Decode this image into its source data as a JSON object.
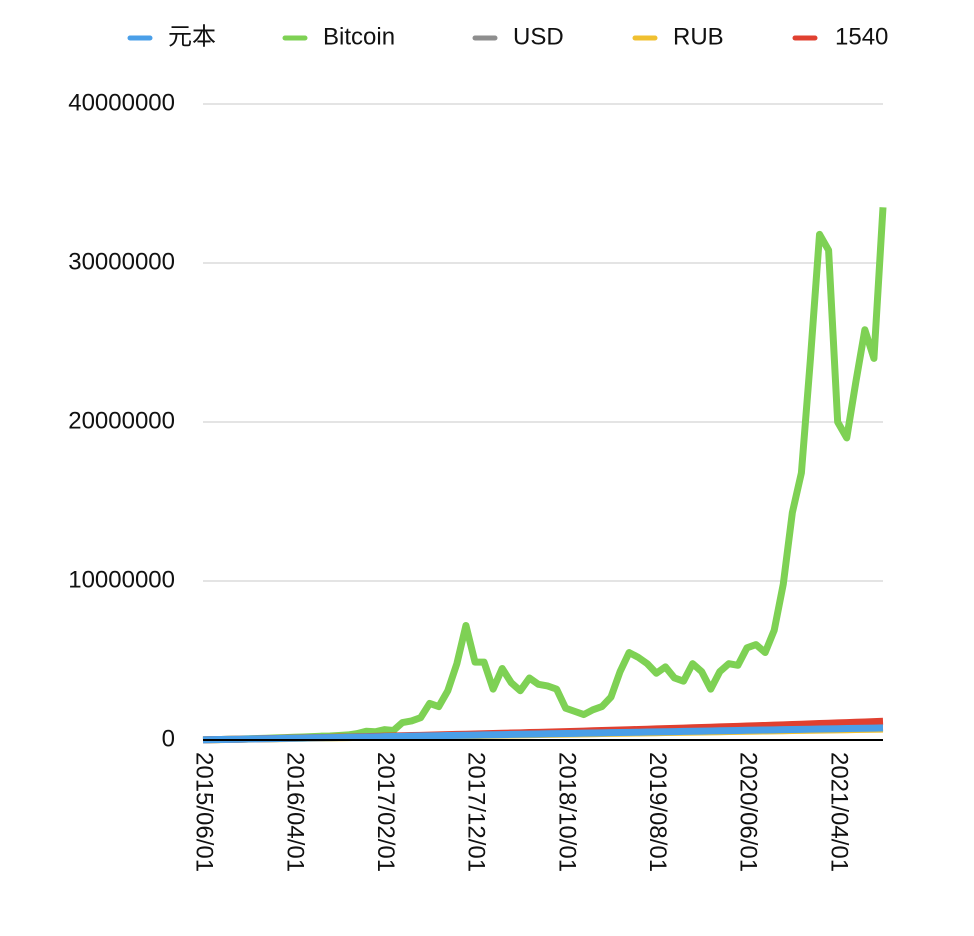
{
  "chart_data": {
    "type": "line",
    "categories": [
      "2015/06/01",
      null,
      null,
      null,
      null,
      null,
      null,
      null,
      null,
      null,
      "2016/04/01",
      null,
      null,
      null,
      null,
      null,
      null,
      null,
      null,
      null,
      "2017/02/01",
      null,
      null,
      null,
      null,
      null,
      null,
      null,
      null,
      null,
      "2017/12/01",
      null,
      null,
      null,
      null,
      null,
      null,
      null,
      null,
      null,
      "2018/10/01",
      null,
      null,
      null,
      null,
      null,
      null,
      null,
      null,
      null,
      "2019/08/01",
      null,
      null,
      null,
      null,
      null,
      null,
      null,
      null,
      null,
      "2020/06/01",
      null,
      null,
      null,
      null,
      null,
      null,
      null,
      null,
      null,
      "2021/04/01",
      null,
      null,
      null,
      null,
      null
    ],
    "series": [
      {
        "name": "元本",
        "color": "#4a9fe8",
        "values": [
          10000,
          20000,
          30000,
          40000,
          50000,
          60000,
          70000,
          80000,
          90000,
          100000,
          110000,
          120000,
          130000,
          140000,
          150000,
          160000,
          170000,
          180000,
          190000,
          200000,
          210000,
          220000,
          230000,
          240000,
          250000,
          260000,
          270000,
          280000,
          290000,
          300000,
          310000,
          320000,
          330000,
          340000,
          350000,
          360000,
          370000,
          380000,
          390000,
          400000,
          410000,
          420000,
          430000,
          440000,
          450000,
          460000,
          470000,
          480000,
          490000,
          500000,
          510000,
          520000,
          530000,
          540000,
          550000,
          560000,
          570000,
          580000,
          590000,
          600000,
          610000,
          620000,
          630000,
          640000,
          650000,
          660000,
          670000,
          680000,
          690000,
          700000,
          710000,
          720000,
          730000,
          740000,
          750000,
          760000
        ]
      },
      {
        "name": "Bitcoin",
        "color": "#7ed154",
        "values": [
          10000,
          20000,
          30000,
          45000,
          60000,
          75000,
          95000,
          110000,
          130000,
          150000,
          170000,
          190000,
          210000,
          240000,
          250000,
          280000,
          320000,
          400000,
          550000,
          520000,
          650000,
          600000,
          1100000,
          1200000,
          1400000,
          2300000,
          2100000,
          3100000,
          4800000,
          7200000,
          4900000,
          4900000,
          3200000,
          4500000,
          3600000,
          3100000,
          3900000,
          3500000,
          3400000,
          3200000,
          2000000,
          1800000,
          1600000,
          1900000,
          2100000,
          2700000,
          4300000,
          5500000,
          5200000,
          4800000,
          4200000,
          4600000,
          3900000,
          3700000,
          4800000,
          4300000,
          3200000,
          4300000,
          4800000,
          4700000,
          5800000,
          6000000,
          5500000,
          6900000,
          9800000,
          14300000,
          16800000,
          24000000,
          31800000,
          30800000,
          20000000,
          19000000,
          22500000,
          25800000,
          24000000,
          33500000
        ]
      },
      {
        "name": "USD",
        "color": "#8e8e8e",
        "values": [
          9800,
          19800,
          29800,
          39800,
          49800,
          59800,
          69800,
          79800,
          89800,
          99800,
          109800,
          119800,
          129800,
          139800,
          149800,
          159800,
          169800,
          179800,
          189800,
          199800,
          209800,
          219800,
          229800,
          239800,
          249800,
          259800,
          269800,
          279800,
          289800,
          299800,
          309800,
          319800,
          329800,
          339800,
          349800,
          359800,
          369800,
          379800,
          389800,
          399800,
          409800,
          419800,
          429800,
          439800,
          449800,
          459800,
          469800,
          479800,
          489800,
          499800,
          509800,
          519800,
          529800,
          539800,
          549800,
          559800,
          569800,
          579800,
          589800,
          599800,
          609800,
          619800,
          629800,
          639800,
          649800,
          659800,
          669800,
          679800,
          689800,
          699800,
          709800,
          719800,
          729800,
          739800,
          749800,
          759800
        ]
      },
      {
        "name": "RUB",
        "color": "#f0c030",
        "values": [
          9000,
          18000,
          27000,
          36000,
          45000,
          54000,
          63000,
          72000,
          81000,
          90000,
          99000,
          108000,
          117000,
          126000,
          135000,
          144000,
          153000,
          162000,
          171000,
          180000,
          189000,
          198000,
          207000,
          216000,
          225000,
          234000,
          243000,
          252000,
          261000,
          270000,
          279000,
          288000,
          297000,
          306000,
          315000,
          324000,
          333000,
          342000,
          351000,
          360000,
          369000,
          378000,
          387000,
          396000,
          405000,
          414000,
          423000,
          432000,
          441000,
          450000,
          459000,
          468000,
          477000,
          486000,
          495000,
          504000,
          513000,
          522000,
          531000,
          540000,
          549000,
          558000,
          567000,
          576000,
          585000,
          594000,
          603000,
          612000,
          621000,
          630000,
          639000,
          648000,
          657000,
          666000,
          675000,
          684000
        ]
      },
      {
        "name": "1540",
        "color": "#e04030",
        "values": [
          10000,
          20000,
          30000,
          41000,
          51000,
          62000,
          73000,
          84000,
          95000,
          107000,
          118000,
          130000,
          141000,
          153000,
          165000,
          178000,
          190000,
          202000,
          215000,
          228000,
          241000,
          254000,
          267000,
          280000,
          294000,
          308000,
          321000,
          335000,
          350000,
          364000,
          378000,
          393000,
          407000,
          422000,
          437000,
          452000,
          468000,
          483000,
          499000,
          514000,
          530000,
          546000,
          562000,
          579000,
          595000,
          612000,
          629000,
          645000,
          662000,
          680000,
          697000,
          714000,
          732000,
          750000,
          768000,
          786000,
          804000,
          822000,
          841000,
          860000,
          878000,
          897000,
          916000,
          936000,
          955000,
          975000,
          994000,
          1014000,
          1034000,
          1054000,
          1074000,
          1095000,
          1115000,
          1136000,
          1157000,
          1178000
        ]
      }
    ],
    "ylim": [
      0,
      40000000
    ],
    "yticks": [
      0,
      10000000,
      20000000,
      30000000,
      40000000
    ],
    "grid": true,
    "legend": "top"
  }
}
